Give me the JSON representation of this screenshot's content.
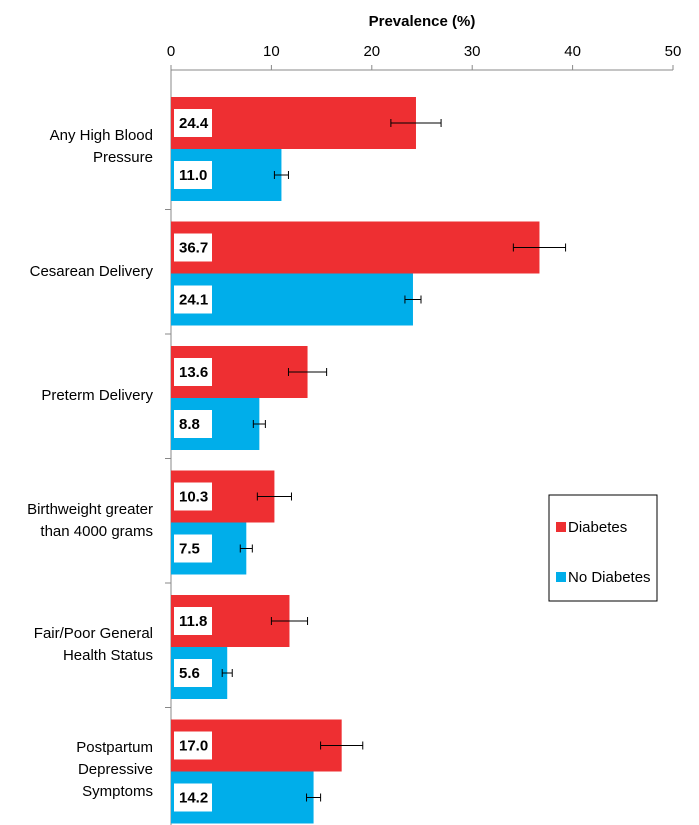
{
  "chart_data": {
    "type": "hbar",
    "title": "Prevalence (%)",
    "categories": [
      "Any High Blood Pressure",
      "Cesarean Delivery",
      "Preterm Delivery",
      "Birthweight greater than 4000 grams",
      "Fair/Poor General Health Status",
      "Postpartum Depressive Symptoms"
    ],
    "series": [
      {
        "name": "Diabetes",
        "color": "#ee2f32",
        "values": [
          24.4,
          36.7,
          13.6,
          10.3,
          11.8,
          17.0
        ],
        "value_labels": [
          "24.4",
          "36.7",
          "13.6",
          "10.3",
          "11.8",
          "17.0"
        ],
        "errors": [
          2.5,
          2.6,
          1.9,
          1.7,
          1.8,
          2.1
        ]
      },
      {
        "name": "No Diabetes",
        "color": "#00aeea",
        "values": [
          11.0,
          24.1,
          8.8,
          7.5,
          5.6,
          14.2
        ],
        "value_labels": [
          "11.0",
          "24.1",
          "8.8",
          "7.5",
          "5.6",
          "14.2"
        ],
        "errors": [
          0.7,
          0.8,
          0.6,
          0.6,
          0.5,
          0.7
        ]
      }
    ],
    "xlim": [
      0,
      50
    ],
    "xticks": [
      0,
      10,
      20,
      30,
      40,
      50
    ],
    "legend": "right"
  }
}
